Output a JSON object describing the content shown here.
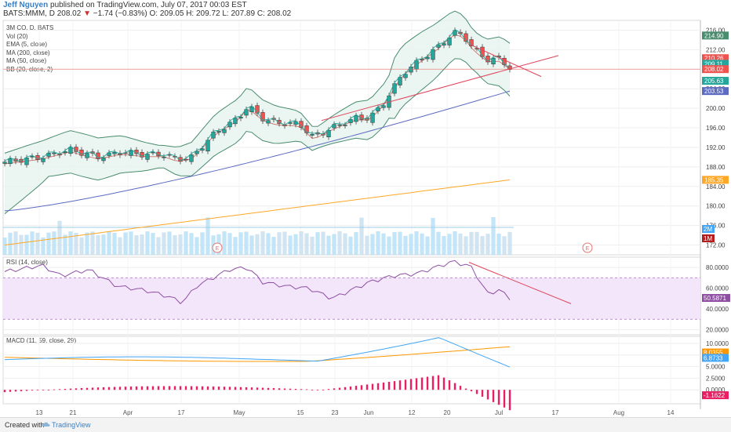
{
  "header": {
    "author": "Jeff Nguyen",
    "published": "published on TradingView.com, July 07, 2017 00:03 EST",
    "symbol_line": "BATS:MMM, D",
    "last": "208.02",
    "change": "−1.74 (−0.83%)",
    "ohlc": "O: 209.05  H: 209.72  L: 207.89  C: 208.02"
  },
  "legend": {
    "items": [
      "3M CO, D, BATS",
      "Vol (20)",
      "EMA (5, close)",
      "MA (200, close)",
      "MA (50, close)",
      "BB (20, close, 2)"
    ]
  },
  "rsi_title": "RSI (14, close)",
  "macd_title": "MACD (11, 59, close, 29)",
  "footer": {
    "created": "Created with",
    "brand": "TradingView"
  },
  "colors": {
    "up": "#26a69a",
    "down": "#ef5350",
    "ema": "#26a69a",
    "ma200": "#ffa726",
    "ma50": "#5c6bc0",
    "bb": "#4a8c6e",
    "bbfill": "#e6f4ef",
    "trend": "#e0445a",
    "rsi": "#8e4fa3",
    "rsiband": "#f3e6fa",
    "macd": "#42a5f5",
    "signal": "#ff9800",
    "hist": "#e91e63"
  },
  "chart_data": [
    {
      "type": "candlestick",
      "name": "3M CO",
      "ylim": [
        170,
        218
      ],
      "y_ticks": [
        172,
        176,
        180,
        184,
        188,
        192,
        196,
        200,
        204,
        208,
        212,
        216
      ],
      "x_tick_labels": [
        "13",
        "21",
        "Apr",
        "17",
        "May",
        "15",
        "23",
        "Jun",
        "12",
        "20",
        "Jul",
        "17",
        "Aug",
        "14"
      ],
      "price_labels": [
        {
          "text": "214.90",
          "value": 214.9,
          "color": "#4a8c6e"
        },
        {
          "text": "210.26",
          "value": 210.26,
          "color": "#ef5350"
        },
        {
          "text": "209.11",
          "value": 209.11,
          "color": "#26a69a"
        },
        {
          "text": "208.02",
          "value": 208.02,
          "color": "#ef5350"
        },
        {
          "text": "205.63",
          "value": 205.63,
          "color": "#26a69a"
        },
        {
          "text": "203.53",
          "value": 203.53,
          "color": "#5c6bc0"
        },
        {
          "text": "185.35",
          "value": 185.35,
          "color": "#ffa726"
        }
      ],
      "volume_labels": [
        {
          "text": "2M",
          "color": "#42a5f5"
        },
        {
          "text": "1M",
          "color": "#b71c1c"
        }
      ],
      "earnings_markers": [
        "E",
        "E"
      ],
      "trend_lines": [
        {
          "from": [
            0,
            189
          ],
          "to": [
            0,
            190
          ],
          "note": "trendlines"
        }
      ]
    },
    {
      "type": "line",
      "name": "RSI (14, close)",
      "ylim": [
        15,
        90
      ],
      "y_ticks_labels": [
        "80.0000",
        "60.0000",
        "40.0000",
        "20.0000"
      ],
      "y_ticks": [
        80,
        60,
        40,
        20
      ],
      "band": [
        30,
        70
      ],
      "last_label": "50.5871"
    },
    {
      "type": "line",
      "name": "MACD (11, 59, close, 29)",
      "ylim": [
        -3,
        11.5
      ],
      "y_ticks_labels": [
        "10.0000",
        "7.5000",
        "5.0000",
        "2.5000",
        "0.0000"
      ],
      "y_ticks": [
        10,
        7.5,
        5,
        2.5,
        0
      ],
      "labels": [
        {
          "text": "8.0355",
          "value": 8.0355,
          "color": "#ff9800"
        },
        {
          "text": "6.8733",
          "value": 6.8733,
          "color": "#42a5f5"
        },
        {
          "text": "-1.1622",
          "value": -1.1622,
          "color": "#e91e63"
        }
      ]
    }
  ]
}
